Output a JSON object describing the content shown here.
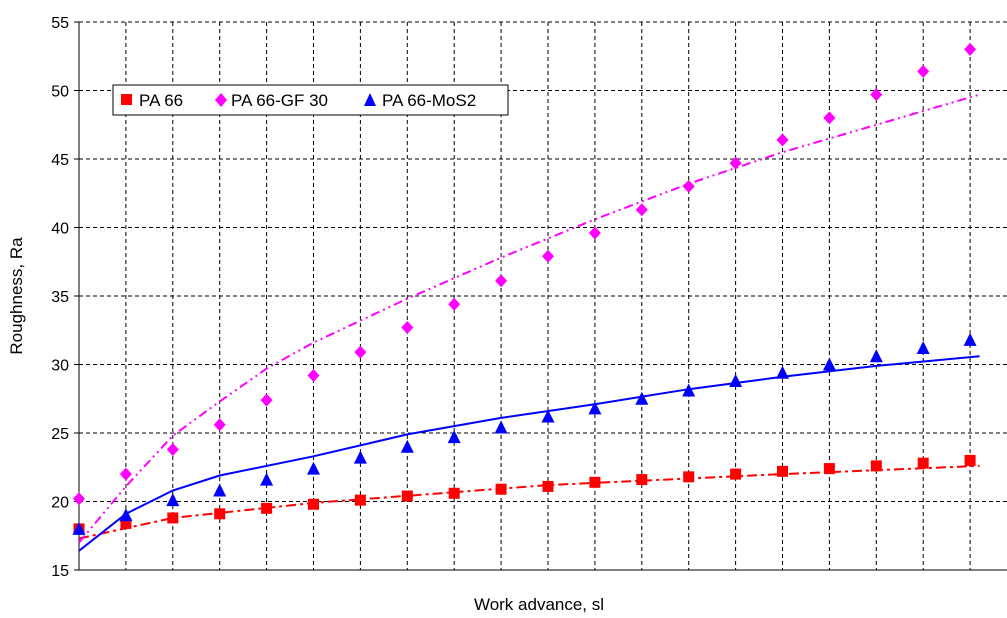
{
  "chart_data": {
    "type": "scatter",
    "title": "",
    "xlabel": "Work advance, sl",
    "ylabel": "Roughness, Ra",
    "ylim": [
      15,
      55
    ],
    "yticks": [
      15,
      20,
      25,
      30,
      35,
      40,
      45,
      50,
      55
    ],
    "x_gridlines": 20,
    "grid": true,
    "legend_position": "top-left",
    "x": [
      0,
      1,
      2,
      3,
      4,
      5,
      6,
      7,
      8,
      9,
      10,
      11,
      12,
      13,
      14,
      15,
      16,
      17,
      18,
      19
    ],
    "series": [
      {
        "name": "PA 66",
        "marker": "square",
        "color": "#ff0000",
        "values": [
          18.0,
          18.4,
          18.8,
          19.1,
          19.5,
          19.8,
          20.1,
          20.4,
          20.6,
          20.9,
          21.1,
          21.4,
          21.6,
          21.8,
          22.0,
          22.2,
          22.4,
          22.6,
          22.8,
          23.0
        ],
        "trendline": {
          "style": "dash-dot",
          "points": [
            [
              0,
              17.3
            ],
            [
              2,
              18.8
            ],
            [
              5,
              19.9
            ],
            [
              10,
              21.2
            ],
            [
              15,
              22.0
            ],
            [
              19.2,
              22.6
            ]
          ]
        }
      },
      {
        "name": "PA 66-GF 30",
        "marker": "diamond",
        "color": "#ff00ff",
        "values": [
          20.2,
          22.0,
          23.8,
          25.6,
          27.4,
          29.2,
          30.9,
          32.7,
          34.4,
          36.1,
          37.9,
          39.6,
          41.3,
          43.0,
          44.7,
          46.4,
          48.0,
          49.7,
          51.4,
          53.0
        ],
        "trendline": {
          "style": "dash-dot-dot",
          "points": [
            [
              0,
              17.0
            ],
            [
              1,
              21.1
            ],
            [
              2,
              24.8
            ],
            [
              3,
              27.3
            ],
            [
              4,
              29.7
            ],
            [
              5,
              31.6
            ],
            [
              7,
              34.8
            ],
            [
              9,
              37.8
            ],
            [
              11,
              40.6
            ],
            [
              13,
              43.2
            ],
            [
              15,
              45.5
            ],
            [
              17,
              47.5
            ],
            [
              19.2,
              49.7
            ]
          ]
        }
      },
      {
        "name": "PA 66-MoS2",
        "marker": "triangle",
        "color": "#0000ff",
        "values": [
          18.0,
          19.0,
          20.1,
          20.8,
          21.6,
          22.4,
          23.2,
          24.0,
          24.7,
          25.4,
          26.2,
          26.8,
          27.5,
          28.1,
          28.8,
          29.4,
          30.0,
          30.6,
          31.2,
          31.8
        ],
        "trendline": {
          "style": "solid",
          "points": [
            [
              0,
              16.4
            ],
            [
              1,
              19.1
            ],
            [
              2,
              20.8
            ],
            [
              3,
              21.9
            ],
            [
              5,
              23.3
            ],
            [
              7,
              24.9
            ],
            [
              9,
              26.1
            ],
            [
              11,
              27.1
            ],
            [
              13,
              28.2
            ],
            [
              15,
              29.1
            ],
            [
              17,
              29.9
            ],
            [
              19.2,
              30.6
            ]
          ]
        }
      }
    ]
  }
}
